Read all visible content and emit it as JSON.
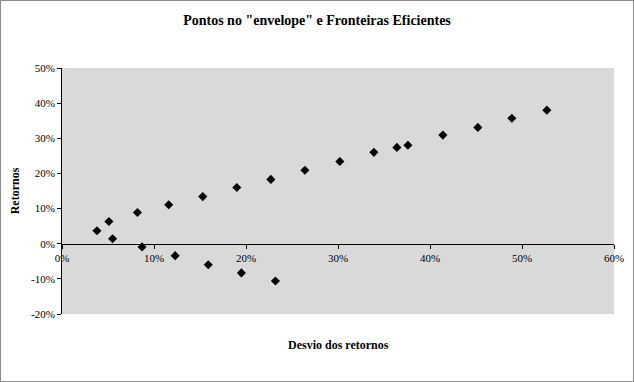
{
  "chart_data": {
    "type": "scatter",
    "title": "Pontos no \"envelope\" e Fronteiras Eficientes",
    "x_label": "Desvio dos retornos",
    "y_label": "Retornos",
    "x": [
      3.8,
      5.1,
      5.5,
      8.2,
      8.7,
      11.6,
      12.3,
      15.3,
      15.9,
      19.0,
      19.5,
      22.7,
      23.2,
      26.4,
      30.2,
      33.9,
      36.4,
      37.6,
      41.4,
      45.2,
      48.9,
      52.7
    ],
    "values": [
      3.7,
      6.3,
      1.4,
      8.9,
      -0.9,
      11.1,
      -3.4,
      13.4,
      -6.0,
      16.0,
      -8.3,
      18.3,
      -10.6,
      20.9,
      23.4,
      26.0,
      27.4,
      28.0,
      30.9,
      33.1,
      35.7,
      38.0
    ],
    "color": "#000000",
    "marker": "diamond",
    "xlim": [
      0,
      60
    ],
    "xticks": [
      {
        "value": 0,
        "label": "0%"
      },
      {
        "value": 10,
        "label": "10%"
      },
      {
        "value": 20,
        "label": "20%"
      },
      {
        "value": 30,
        "label": "30%"
      },
      {
        "value": 40,
        "label": "40%"
      },
      {
        "value": 50,
        "label": "50%"
      },
      {
        "value": 60,
        "label": "60%"
      }
    ],
    "ylim": [
      -20,
      50
    ],
    "yticks": [
      {
        "value": -20,
        "label": "-20%"
      },
      {
        "value": -10,
        "label": "-10%"
      },
      {
        "value": 0,
        "label": "0%"
      },
      {
        "value": 10,
        "label": "10%"
      },
      {
        "value": 20,
        "label": "20%"
      },
      {
        "value": 30,
        "label": "30%"
      },
      {
        "value": 40,
        "label": "40%"
      },
      {
        "value": 50,
        "label": "50%"
      }
    ],
    "grid": false
  }
}
